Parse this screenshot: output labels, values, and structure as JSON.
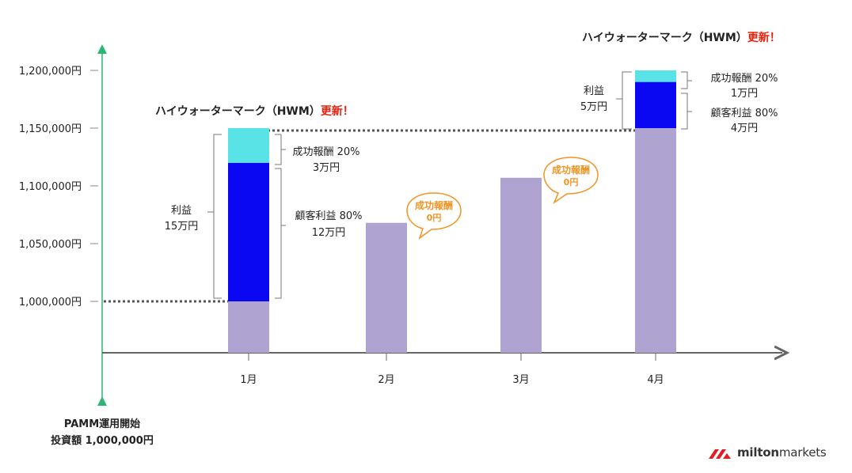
{
  "chart_data": {
    "type": "bar",
    "categories": [
      "1月",
      "2月",
      "3月",
      "4月"
    ],
    "yticks": [
      "1,000,000円",
      "1,050,000円",
      "1,100,000円",
      "1,150,000円",
      "1,200,000円"
    ],
    "ytick_values": [
      1000000,
      1050000,
      1100000,
      1150000,
      1200000
    ],
    "series": [
      {
        "values": [
          1000000,
          1068000,
          1107000,
          1150000
        ]
      },
      {
        "values": [
          120000,
          0,
          0,
          40000
        ]
      },
      {
        "values": [
          30000,
          0,
          0,
          10000
        ]
      }
    ],
    "colors": {
      "base": "#aea3d1",
      "client": "#0a08f2",
      "fee": "#5ae3e6",
      "hwm_red": "#e8200c",
      "bubble": "#f39322",
      "axis": "#2bb673",
      "dotted": "#555555"
    }
  },
  "start_label": {
    "line1": "PAMM運用開始",
    "line2": "投資額 1,000,000円"
  },
  "hwm": {
    "text": "ハイウォーターマーク（HWM）",
    "update": "更新！"
  },
  "jan": {
    "profit_label": "利益",
    "profit_value": "15万円",
    "fee_label": "成功報酬 20%",
    "fee_value": "3万円",
    "client_label": "顧客利益 80%",
    "client_value": "12万円"
  },
  "apr": {
    "profit_label": "利益",
    "profit_value": "5万円",
    "fee_label": "成功報酬 20%",
    "fee_value": "1万円",
    "client_label": "顧客利益 80%",
    "client_value": "4万円"
  },
  "bubbles": [
    {
      "title": "成功報酬",
      "value": "0円"
    },
    {
      "title": "成功報酬",
      "value": "0円"
    }
  ],
  "logo": {
    "bold": "milton",
    "regular": "markets"
  }
}
